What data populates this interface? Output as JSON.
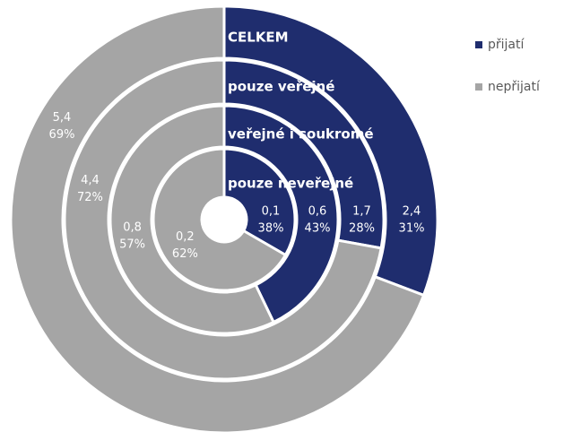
{
  "chart_data": {
    "type": "multi-donut",
    "categories": [
      "přijatí",
      "nepřijatí"
    ],
    "colors": [
      "#1f2d6e",
      "#a5a5a5"
    ],
    "rings": [
      {
        "name": "CELKEM",
        "values": [
          2.4,
          5.4
        ],
        "value_labels": [
          "2,4",
          "5,4"
        ],
        "shares": [
          31,
          69
        ],
        "share_labels": [
          "31%",
          "69%"
        ]
      },
      {
        "name": "pouze veřejné",
        "values": [
          1.7,
          4.4
        ],
        "value_labels": [
          "1,7",
          "4,4"
        ],
        "shares": [
          28,
          72
        ],
        "share_labels": [
          "28%",
          "72%"
        ]
      },
      {
        "name": "veřejné i soukromé",
        "values": [
          0.6,
          0.8
        ],
        "value_labels": [
          "0,6",
          "0,8"
        ],
        "shares": [
          43,
          57
        ],
        "share_labels": [
          "43%",
          "57%"
        ]
      },
      {
        "name": "pouze neveřejné",
        "values": [
          0.1,
          0.2
        ],
        "value_labels": [
          "0,1",
          "0,2"
        ],
        "shares": [
          38,
          62
        ],
        "share_labels": [
          "38%",
          "62%"
        ]
      }
    ],
    "legend": "right"
  }
}
